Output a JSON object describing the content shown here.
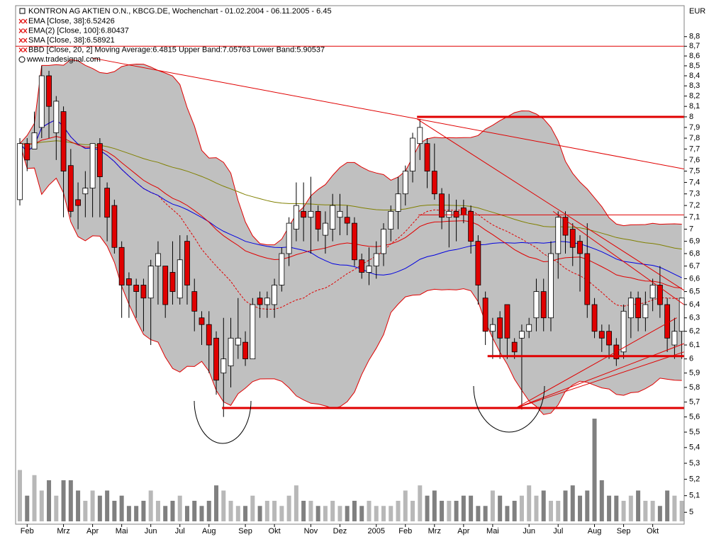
{
  "chart_data": {
    "type": "candlestick",
    "title": "KONTRON AG AKTIEN O.N., KBCG.DE, Wochenchart - 01.02.2004 - 06.11.2005 - 6.45",
    "currency": "EUR",
    "source": "www.tradesignal.com",
    "legend": [
      {
        "text": "EMA [Close, 38]:6.52426",
        "color": "#e00000"
      },
      {
        "text": "EMA(2) [Close, 100]:6.80437",
        "color": "#808000"
      },
      {
        "text": "SMA [Close, 38]:6.58921",
        "color": "#0000e0"
      },
      {
        "text": "BBD [Close, 20, 2] Moving Average:6.4815 Upper Band:7.05763 Lower Band:5.90537",
        "color": "#e00000"
      }
    ],
    "log": true,
    "ylim": [
      4.93,
      9.13
    ],
    "yticks": [
      5,
      {
        "value": 5.1,
        "label": "5,1"
      },
      {
        "value": 5.2,
        "label": "5,2"
      },
      {
        "value": 5.3,
        "label": "5,3"
      },
      {
        "value": 5.4,
        "label": "5,4"
      },
      {
        "value": 5.5,
        "label": "5,5"
      },
      {
        "value": 5.6,
        "label": "5,6"
      },
      {
        "value": 5.7,
        "label": "5,7"
      },
      {
        "value": 5.8,
        "label": "5,8"
      },
      {
        "value": 5.9,
        "label": "5,9"
      },
      6,
      {
        "value": 6.1,
        "label": "6,1"
      },
      {
        "value": 6.2,
        "label": "6,2"
      },
      {
        "value": 6.3,
        "label": "6,3"
      },
      {
        "value": 6.4,
        "label": "6,4"
      },
      {
        "value": 6.5,
        "label": "6,5"
      },
      {
        "value": 6.6,
        "label": "6,6"
      },
      {
        "value": 6.7,
        "label": "6,7"
      },
      {
        "value": 6.8,
        "label": "6,8"
      },
      {
        "value": 6.9,
        "label": "6,9"
      },
      7,
      {
        "value": 7.1,
        "label": "7,1"
      },
      {
        "value": 7.2,
        "label": "7,2"
      },
      {
        "value": 7.3,
        "label": "7,3"
      },
      {
        "value": 7.4,
        "label": "7,4"
      },
      {
        "value": 7.5,
        "label": "7,5"
      },
      {
        "value": 7.6,
        "label": "7,6"
      },
      {
        "value": 7.7,
        "label": "7,7"
      },
      {
        "value": 7.8,
        "label": "7,8"
      },
      {
        "value": 7.9,
        "label": "7,9"
      },
      8,
      {
        "value": 8.1,
        "label": "8,1"
      },
      {
        "value": 8.2,
        "label": "8,2"
      },
      {
        "value": 8.3,
        "label": "8,3"
      },
      {
        "value": 8.4,
        "label": "8,4"
      },
      {
        "value": 8.5,
        "label": "8,5"
      },
      {
        "value": 8.6,
        "label": "8,6"
      },
      {
        "value": 8.7,
        "label": "8,7"
      },
      {
        "value": 8.8,
        "label": "8,8"
      }
    ],
    "categories": [
      null,
      "Feb",
      null,
      null,
      null,
      null,
      "Mrz",
      null,
      null,
      null,
      "Apr",
      null,
      null,
      null,
      "Mai",
      null,
      null,
      null,
      "Jun",
      null,
      null,
      null,
      "Jul",
      null,
      null,
      null,
      "Aug",
      null,
      null,
      null,
      null,
      "Sep",
      null,
      null,
      null,
      "Okt",
      null,
      null,
      null,
      null,
      "Nov",
      null,
      null,
      null,
      "Dez",
      null,
      null,
      null,
      null,
      "2005",
      null,
      null,
      null,
      "Feb",
      null,
      null,
      null,
      "Mrz",
      null,
      null,
      null,
      "Apr",
      null,
      null,
      null,
      "Mai",
      null,
      null,
      null,
      null,
      "Jun",
      null,
      null,
      null,
      "Jul",
      null,
      null,
      null,
      null,
      "Aug",
      null,
      null,
      null,
      "Sep",
      null,
      null,
      null,
      "Okt",
      null,
      null,
      null,
      null
    ],
    "open": [
      7.25,
      7.75,
      7.7,
      7.9,
      8.4,
      7.85,
      8.05,
      7.55,
      7.25,
      7.3,
      7.35,
      7.75,
      7.35,
      7.2,
      6.85,
      6.6,
      6.55,
      6.55,
      6.45,
      6.7,
      6.7,
      6.65,
      6.45,
      6.9,
      6.5,
      6.3,
      6.25,
      6.15,
      5.9,
      5.95,
      6.1,
      6.12,
      6.0,
      6.45,
      6.4,
      6.4,
      6.55,
      6.8,
      7.0,
      7.15,
      7.1,
      7.15,
      6.95,
      7.0,
      7.1,
      7.1,
      7.05,
      6.75,
      6.65,
      6.7,
      6.8,
      7.0,
      7.15,
      7.3,
      7.5,
      7.75,
      7.75,
      7.5,
      7.3,
      7.1,
      7.15,
      7.18,
      7.15,
      6.9,
      6.45,
      6.2,
      6.3,
      6.4,
      6.12,
      6.15,
      6.2,
      6.3,
      6.5,
      6.3,
      6.8,
      7.1,
      7.0,
      6.9,
      6.8,
      6.4,
      6.2,
      6.2,
      6.1,
      6.05,
      6.3,
      6.45,
      6.3,
      6.45,
      6.55,
      6.4,
      6.1,
      6.2
    ],
    "high": [
      7.8,
      7.8,
      8.05,
      8.5,
      8.45,
      8.2,
      8.1,
      7.7,
      7.4,
      7.5,
      7.75,
      7.8,
      7.4,
      7.25,
      6.9,
      6.65,
      6.6,
      6.6,
      6.75,
      6.9,
      6.7,
      6.9,
      6.95,
      6.95,
      6.6,
      6.35,
      6.35,
      6.2,
      6.3,
      6.3,
      6.45,
      6.2,
      6.45,
      6.5,
      6.5,
      6.6,
      6.85,
      7.1,
      7.4,
      7.4,
      7.45,
      7.2,
      7.15,
      7.3,
      7.3,
      7.2,
      7.1,
      6.8,
      6.85,
      6.9,
      7.05,
      7.2,
      7.45,
      7.55,
      7.85,
      7.98,
      7.8,
      7.75,
      7.35,
      7.3,
      7.25,
      7.25,
      7.2,
      6.95,
      6.5,
      6.3,
      6.35,
      6.4,
      6.15,
      6.25,
      6.3,
      6.6,
      6.6,
      6.9,
      7.15,
      7.15,
      7.05,
      6.95,
      7.05,
      6.45,
      6.25,
      6.25,
      6.15,
      6.4,
      6.5,
      6.5,
      6.5,
      6.6,
      6.7,
      6.45,
      6.3,
      6.45
    ],
    "low": [
      7.2,
      7.5,
      7.7,
      7.8,
      7.8,
      7.6,
      7.1,
      7.1,
      7.0,
      7.1,
      7.1,
      7.1,
      6.9,
      6.8,
      6.3,
      6.3,
      6.3,
      6.2,
      6.1,
      6.4,
      6.3,
      6.4,
      6.4,
      6.4,
      6.2,
      6.1,
      5.9,
      5.75,
      5.6,
      5.8,
      6.0,
      5.95,
      6.0,
      6.3,
      6.3,
      6.3,
      6.5,
      6.7,
      6.9,
      6.9,
      6.8,
      6.9,
      6.8,
      6.9,
      6.95,
      6.95,
      6.7,
      6.6,
      6.55,
      6.6,
      6.7,
      6.9,
      7.0,
      7.2,
      7.4,
      7.6,
      7.35,
      7.25,
      7.0,
      6.85,
      6.9,
      7.05,
      6.8,
      6.4,
      6.1,
      6.0,
      6.0,
      6.0,
      6.0,
      5.65,
      6.15,
      6.2,
      6.2,
      6.2,
      6.6,
      6.8,
      6.7,
      6.5,
      6.3,
      6.15,
      6.05,
      6.0,
      5.95,
      6.0,
      6.15,
      6.2,
      6.2,
      6.35,
      6.3,
      6.05,
      6.0,
      6.0
    ],
    "close": [
      7.75,
      7.6,
      7.85,
      8.4,
      8.1,
      8.15,
      7.5,
      7.15,
      7.2,
      7.35,
      7.75,
      7.45,
      7.1,
      6.85,
      6.55,
      6.55,
      6.5,
      6.45,
      6.7,
      6.8,
      6.4,
      6.5,
      6.75,
      6.55,
      6.35,
      6.25,
      6.1,
      5.85,
      6.0,
      6.15,
      6.15,
      6.0,
      6.4,
      6.4,
      6.45,
      6.55,
      6.8,
      7.05,
      7.2,
      7.1,
      7.15,
      7.0,
      7.05,
      7.2,
      7.15,
      7.05,
      6.75,
      6.65,
      6.7,
      6.8,
      7.0,
      7.15,
      7.3,
      7.5,
      7.8,
      7.9,
      7.5,
      7.3,
      7.1,
      7.15,
      7.1,
      7.12,
      6.9,
      6.55,
      6.2,
      6.25,
      6.15,
      6.15,
      6.05,
      6.2,
      6.25,
      6.5,
      6.3,
      6.8,
      7.1,
      6.95,
      6.85,
      6.8,
      6.4,
      6.2,
      6.15,
      6.1,
      6.0,
      6.35,
      6.45,
      6.3,
      6.4,
      6.55,
      6.4,
      6.15,
      6.2,
      6.45
    ],
    "volume": [
      50,
      25,
      45,
      30,
      40,
      25,
      40,
      40,
      30,
      20,
      30,
      25,
      30,
      20,
      25,
      15,
      15,
      20,
      30,
      20,
      15,
      20,
      25,
      15,
      20,
      15,
      20,
      35,
      30,
      20,
      15,
      15,
      25,
      15,
      20,
      20,
      15,
      25,
      35,
      20,
      20,
      15,
      15,
      20,
      15,
      15,
      20,
      15,
      20,
      15,
      15,
      15,
      20,
      30,
      20,
      35,
      25,
      30,
      20,
      20,
      20,
      25,
      25,
      15,
      15,
      30,
      25,
      15,
      20,
      25,
      35,
      25,
      30,
      20,
      20,
      30,
      35,
      25,
      30,
      100,
      40,
      25,
      25,
      20,
      25,
      30,
      20,
      20,
      15,
      30,
      25,
      20
    ],
    "up_color": "#ffffff",
    "down_color": "#e00000",
    "band_color": "#c0c0c0",
    "trendlines": [
      {
        "from": [
          -0.6,
          8.7
        ],
        "to": [
          91.3,
          8.7
        ],
        "thick": false
      },
      {
        "from": [
          9.9,
          8.58
        ],
        "to": [
          91.3,
          7.52
        ],
        "thick": false
      },
      {
        "from": [
          54.6,
          8.0
        ],
        "to": [
          91.3,
          8.0
        ],
        "thick": true
      },
      {
        "from": [
          54.8,
          7.12
        ],
        "to": [
          91.3,
          7.12
        ],
        "thick": false
      },
      {
        "from": [
          64.3,
          6.02
        ],
        "to": [
          91.3,
          6.02
        ],
        "thick": true
      },
      {
        "from": [
          27.8,
          5.66
        ],
        "to": [
          91.3,
          5.66
        ],
        "thick": true
      },
      {
        "from": [
          54.6,
          7.98
        ],
        "to": [
          91.3,
          6.51
        ],
        "thick": false
      },
      {
        "from": [
          73.3,
          7.15
        ],
        "to": [
          91.3,
          6.4
        ],
        "thick": false
      },
      {
        "from": [
          68.2,
          5.66
        ],
        "to": [
          90.3,
          6.3
        ],
        "thick": false
      },
      {
        "from": [
          68.2,
          5.66
        ],
        "to": [
          91.3,
          6.11
        ],
        "thick": false
      },
      {
        "from": [
          68.2,
          5.66
        ],
        "to": [
          91.3,
          6.05
        ],
        "thick": false
      }
    ]
  }
}
